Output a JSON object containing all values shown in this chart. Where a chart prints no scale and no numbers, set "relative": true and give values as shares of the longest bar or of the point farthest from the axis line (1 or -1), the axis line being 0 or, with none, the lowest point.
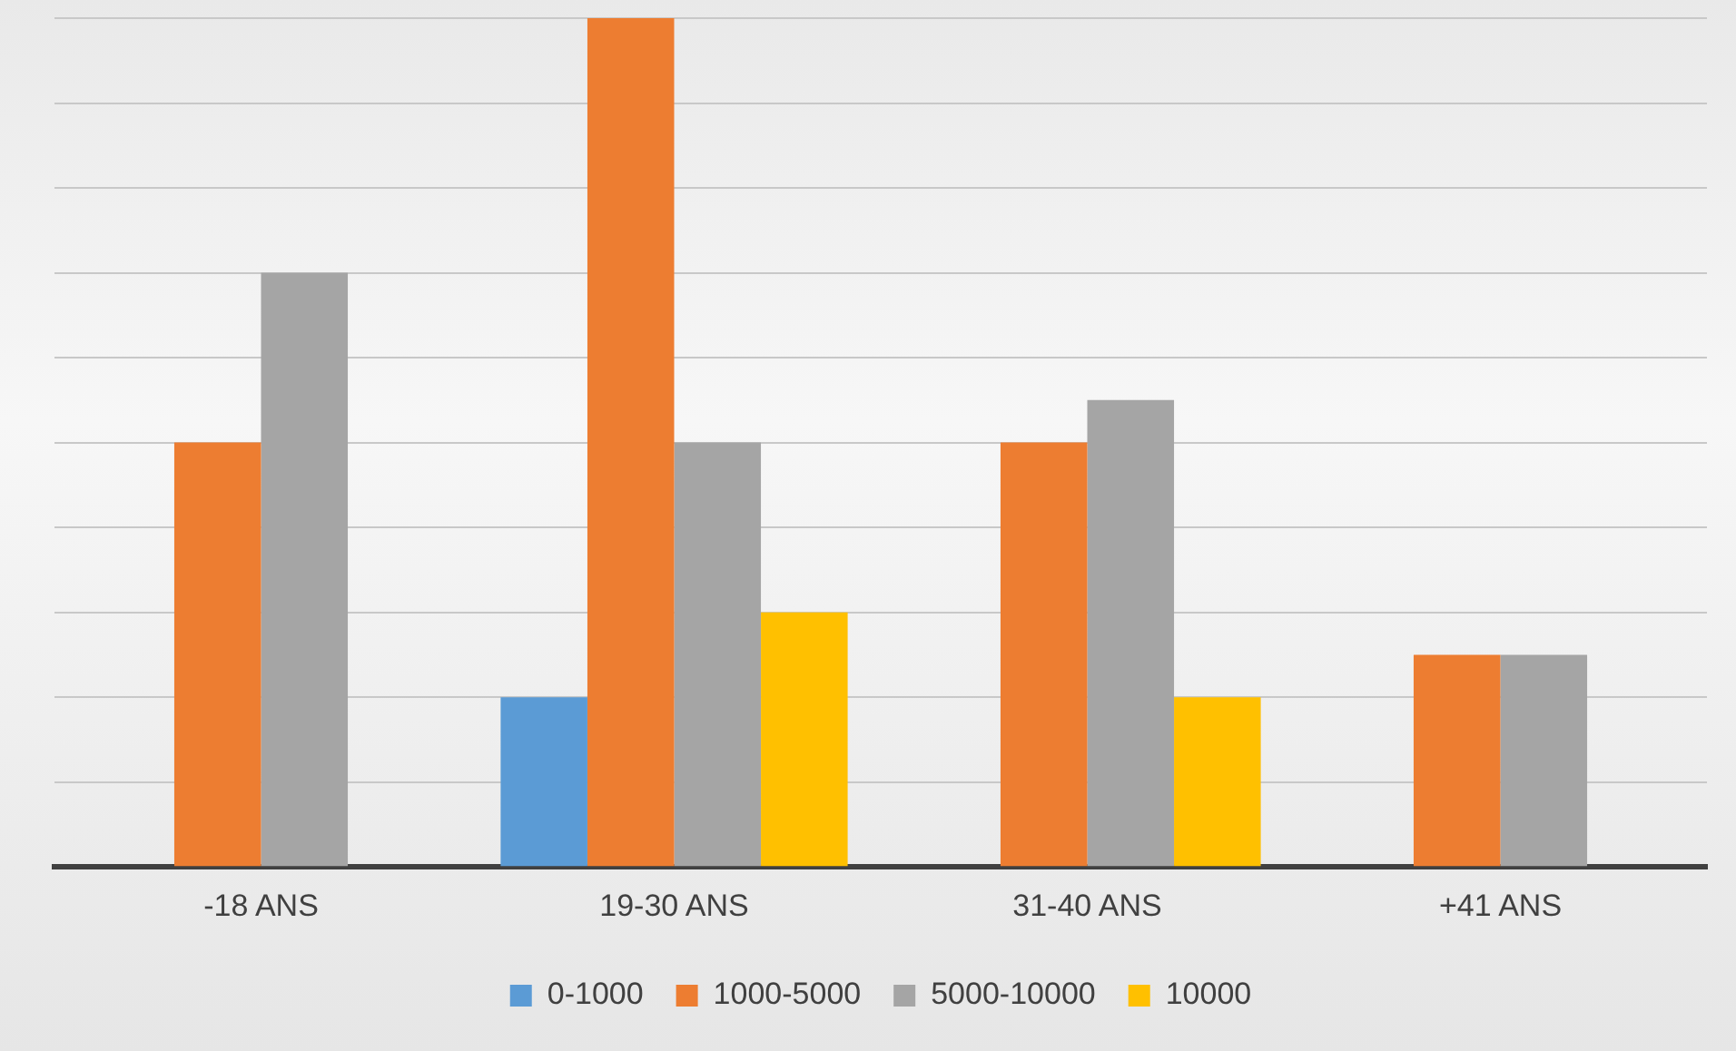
{
  "chart_data": {
    "type": "bar",
    "relative": true,
    "categories": [
      "-18 ANS",
      "19-30 ANS",
      "31-40 ANS",
      "+41 ANS"
    ],
    "series": [
      {
        "name": "0-1000",
        "color": "#5b9bd5",
        "values": [
          null,
          0.2,
          null,
          null
        ]
      },
      {
        "name": "1000-5000",
        "color": "#ed7d31",
        "values": [
          0.5,
          1,
          0.5,
          0.25
        ]
      },
      {
        "name": "5000-10000",
        "color": "#a5a5a5",
        "values": [
          0.7,
          0.5,
          0.55,
          0.25
        ]
      },
      {
        "name": "10000",
        "color": "#ffc000",
        "values": [
          null,
          0.3,
          0.2,
          null
        ]
      }
    ],
    "grid": "y",
    "legend": "bottom"
  }
}
